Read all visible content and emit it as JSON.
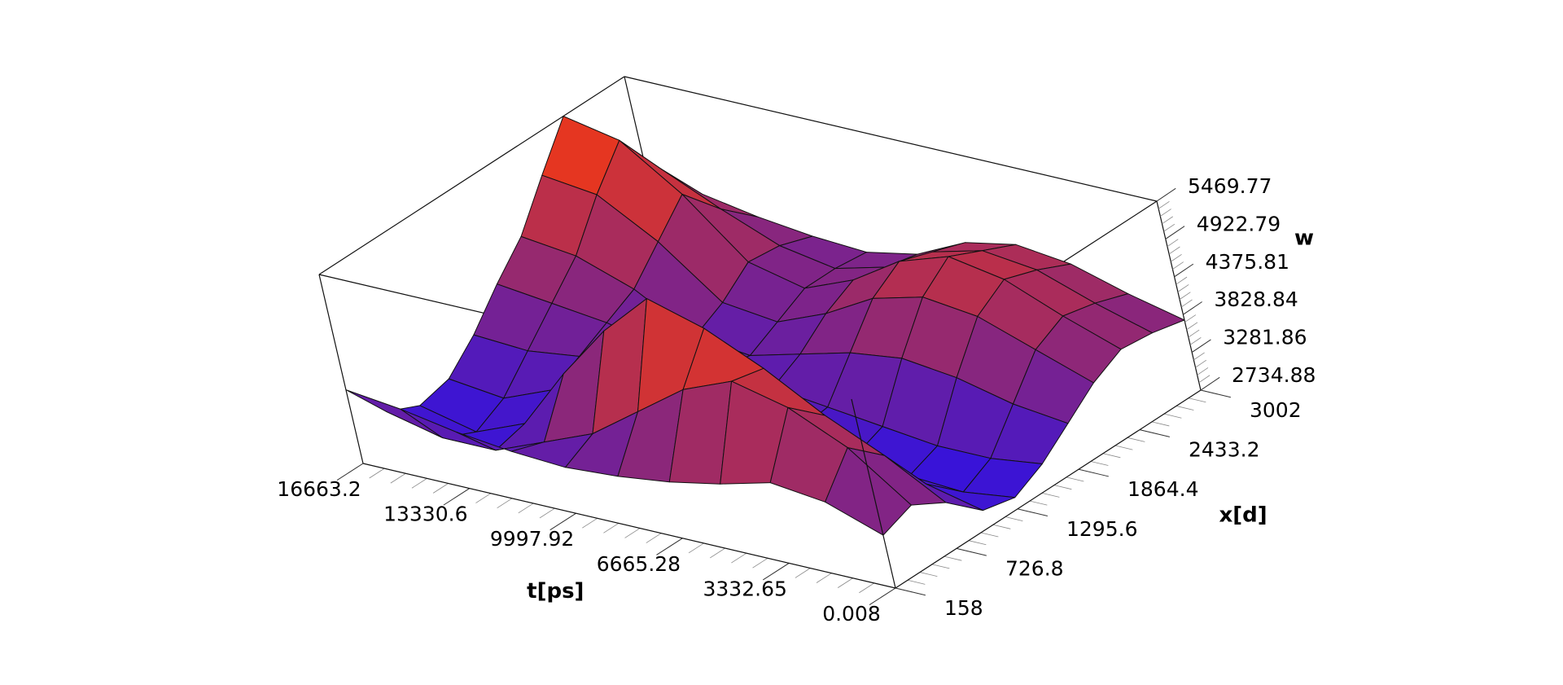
{
  "chart_data": {
    "type": "surface3d",
    "title": "",
    "axes": {
      "t": {
        "label": "t[ps]",
        "range": [
          0.008,
          16663.2
        ],
        "ticks": [
          "0.008",
          "3332.65",
          "6665.28",
          "9997.92",
          "13330.6",
          "16663.2"
        ]
      },
      "x": {
        "label": "x[d]",
        "range": [
          158,
          3002
        ],
        "ticks": [
          "158",
          "726.8",
          "1295.6",
          "1864.4",
          "2433.2",
          "3002"
        ]
      },
      "w": {
        "label": "w",
        "range": [
          2734.88,
          5469.77
        ],
        "ticks": [
          "2734.88",
          "3281.86",
          "3828.84",
          "4375.81",
          "4922.79",
          "5469.77"
        ]
      }
    },
    "t_values": [
      0.008,
      1666.3,
      3332.65,
      4998.9,
      6665.28,
      8331.6,
      9997.92,
      11664.3,
      13330.6,
      14996.9,
      16663.2
    ],
    "x_values": [
      158,
      442.4,
      726.8,
      1011.2,
      1295.6,
      1580.0,
      1864.4,
      2148.8,
      2433.2,
      2717.6,
      3002
    ],
    "w_grid": [
      [
        3500,
        3650,
        3400,
        3000,
        2900,
        3100,
        3400,
        3700,
        3900,
        3850,
        3750
      ],
      [
        3800,
        4300,
        3900,
        3200,
        2800,
        3000,
        3500,
        4000,
        4200,
        4100,
        3950
      ],
      [
        3900,
        4700,
        4300,
        3400,
        2850,
        3000,
        3700,
        4300,
        4550,
        4400,
        4200
      ],
      [
        3700,
        4900,
        4800,
        3700,
        2950,
        3100,
        3800,
        4400,
        4700,
        4500,
        4300
      ],
      [
        3550,
        4600,
        5200,
        4100,
        3150,
        3200,
        3700,
        4200,
        4450,
        4300,
        4150
      ],
      [
        3450,
        4100,
        5450,
        4350,
        3400,
        3300,
        3500,
        3800,
        4000,
        3900,
        3800
      ],
      [
        3400,
        3600,
        4800,
        4300,
        3700,
        3400,
        3300,
        3500,
        3700,
        3700,
        3650
      ],
      [
        3450,
        3300,
        4000,
        3900,
        3600,
        3500,
        3400,
        3600,
        3900,
        3850,
        3700
      ],
      [
        3550,
        3000,
        3100,
        3300,
        3500,
        3700,
        3900,
        4300,
        4700,
        4200,
        3800
      ],
      [
        3700,
        3000,
        2800,
        3000,
        3400,
        3800,
        4200,
        4800,
        5300,
        4600,
        3950
      ],
      [
        3800,
        3200,
        3000,
        3100,
        3450,
        3900,
        4300,
        4900,
        5469,
        4700,
        4000
      ]
    ],
    "colormap": {
      "low": "#2a10e8",
      "mid": "#9a2a6a",
      "high": "#ff3a08"
    },
    "grid": false,
    "legend": "none"
  }
}
